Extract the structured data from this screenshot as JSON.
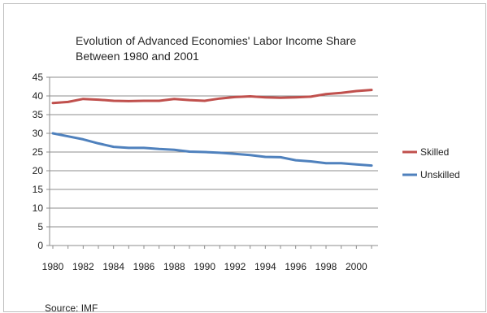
{
  "chart_data": {
    "type": "line",
    "title_lines": [
      "Evolution of Advanced Economies' Labor Income Share",
      "Between 1980 and 2001"
    ],
    "xlabel": "",
    "ylabel": "",
    "x": [
      1980,
      1981,
      1982,
      1983,
      1984,
      1985,
      1986,
      1987,
      1988,
      1989,
      1990,
      1991,
      1992,
      1993,
      1994,
      1995,
      1996,
      1997,
      1998,
      1999,
      2000,
      2001
    ],
    "x_tick_labels": [
      "1980",
      "1982",
      "1984",
      "1986",
      "1988",
      "1990",
      "1992",
      "1994",
      "1996",
      "1998",
      "2000"
    ],
    "ylim": [
      0,
      45
    ],
    "y_ticks": [
      "0",
      "5",
      "10",
      "15",
      "20",
      "25",
      "30",
      "35",
      "40",
      "45"
    ],
    "grid": "horizontal",
    "legend_position": "right",
    "series": [
      {
        "name": "Skilled",
        "color": "#c0504d",
        "values": [
          38.1,
          38.4,
          39.2,
          39.0,
          38.7,
          38.6,
          38.7,
          38.7,
          39.2,
          38.9,
          38.7,
          39.3,
          39.7,
          39.9,
          39.6,
          39.5,
          39.6,
          39.8,
          40.5,
          40.8,
          41.3,
          41.6
        ]
      },
      {
        "name": "Unskilled",
        "color": "#4f81bd",
        "values": [
          30.0,
          29.2,
          28.4,
          27.3,
          26.4,
          26.1,
          26.1,
          25.8,
          25.6,
          25.1,
          25.0,
          24.8,
          24.5,
          24.2,
          23.7,
          23.6,
          22.8,
          22.5,
          22.0,
          22.0,
          21.7,
          21.4
        ]
      }
    ],
    "source": "Source: IMF"
  }
}
